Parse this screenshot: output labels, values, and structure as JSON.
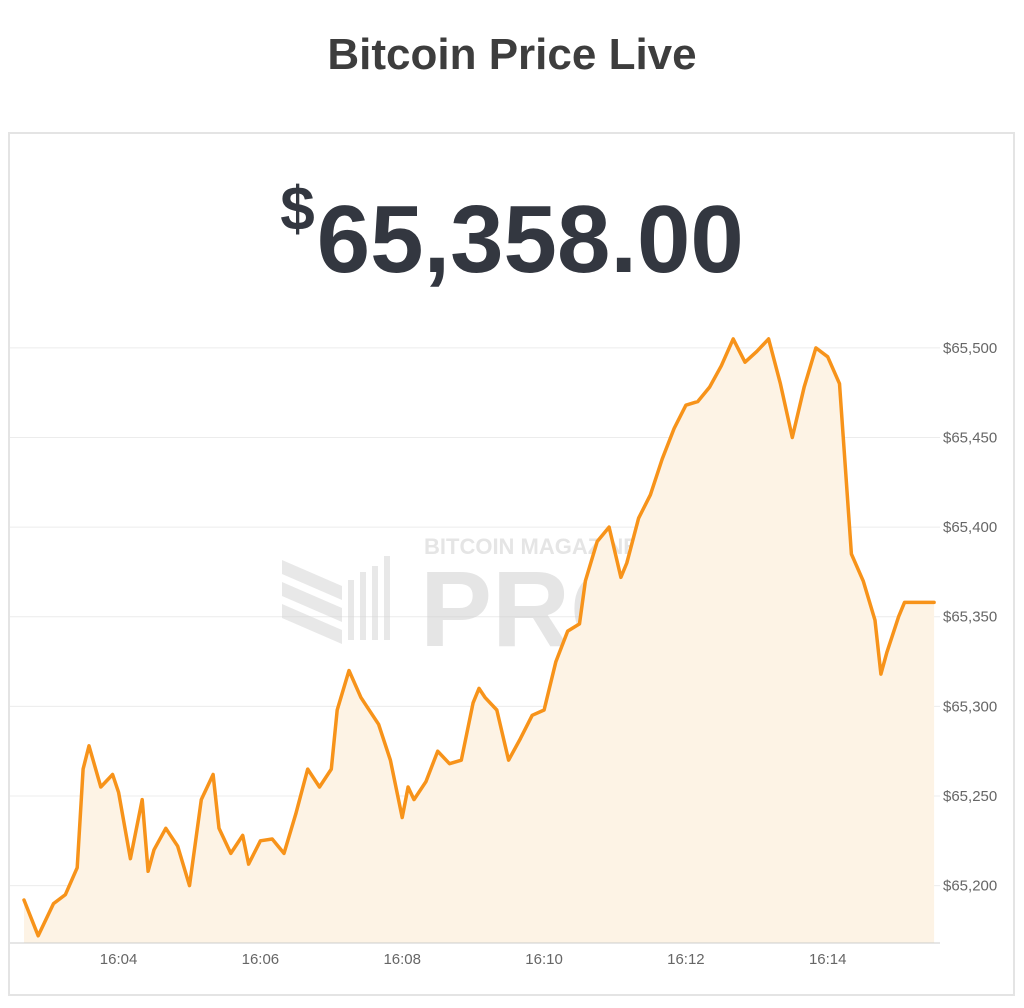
{
  "header": {
    "title": "Bitcoin Price Live"
  },
  "ticker": {
    "currency_symbol": "$",
    "price": "65,358.00"
  },
  "watermark": {
    "brand": "BITCOIN MAGAZINE",
    "product": "PRO"
  },
  "colors": {
    "line": "#f7931a",
    "fill": "#fdf3e5",
    "grid": "#ececec",
    "axis_text": "#666666"
  },
  "chart_data": {
    "type": "area",
    "title": "",
    "xlabel": "",
    "ylabel": "",
    "x_ticks": [
      "16:04",
      "16:06",
      "16:08",
      "16:10",
      "16:12",
      "16:14"
    ],
    "y_ticks": [
      "$65,200",
      "$65,250",
      "$65,300",
      "$65,350",
      "$65,400",
      "$65,450",
      "$65,500"
    ],
    "ylim": [
      65168,
      65520
    ],
    "grid": true,
    "legend": "none",
    "series": [
      {
        "x": [
          "16:02:40",
          "16:02:52",
          "16:03:05",
          "16:03:15",
          "16:03:25",
          "16:03:30",
          "16:03:35",
          "16:03:45",
          "16:03:55",
          "16:04:00",
          "16:04:10",
          "16:04:20",
          "16:04:25",
          "16:04:30",
          "16:04:40",
          "16:04:50",
          "16:05:00",
          "16:05:10",
          "16:05:20",
          "16:05:25",
          "16:05:35",
          "16:05:45",
          "16:05:50",
          "16:06:00",
          "16:06:10",
          "16:06:20",
          "16:06:30",
          "16:06:40",
          "16:06:50",
          "16:07:00",
          "16:07:05",
          "16:07:15",
          "16:07:25",
          "16:07:30",
          "16:07:40",
          "16:07:50",
          "16:08:00",
          "16:08:05",
          "16:08:10",
          "16:08:20",
          "16:08:30",
          "16:08:40",
          "16:08:50",
          "16:09:00",
          "16:09:05",
          "16:09:10",
          "16:09:20",
          "16:09:30",
          "16:09:40",
          "16:09:50",
          "16:10:00",
          "16:10:10",
          "16:10:20",
          "16:10:30",
          "16:10:35",
          "16:10:45",
          "16:10:55",
          "16:11:05",
          "16:11:10",
          "16:11:20",
          "16:11:30",
          "16:11:40",
          "16:11:50",
          "16:12:00",
          "16:12:10",
          "16:12:20",
          "16:12:30",
          "16:12:40",
          "16:12:50",
          "16:13:00",
          "16:13:10",
          "16:13:20",
          "16:13:30",
          "16:13:40",
          "16:13:50",
          "16:14:00",
          "16:14:10",
          "16:14:20",
          "16:14:30",
          "16:14:40",
          "16:14:45",
          "16:14:50",
          "16:14:55",
          "16:15:00",
          "16:15:05",
          "16:15:10",
          "16:15:15",
          "16:15:20",
          "16:15:30"
        ],
        "values": [
          65192,
          65172,
          65190,
          65195,
          65210,
          65265,
          65278,
          65255,
          65262,
          65252,
          65215,
          65248,
          65208,
          65220,
          65232,
          65222,
          65200,
          65248,
          65262,
          65232,
          65218,
          65228,
          65212,
          65225,
          65226,
          65218,
          65240,
          65265,
          65255,
          65265,
          65298,
          65320,
          65305,
          65300,
          65290,
          65270,
          65238,
          65255,
          65248,
          65258,
          65275,
          65268,
          65270,
          65302,
          65310,
          65305,
          65298,
          65270,
          65282,
          65295,
          65298,
          65325,
          65342,
          65346,
          65370,
          65392,
          65400,
          65372,
          65380,
          65405,
          65418,
          65438,
          65455,
          65468,
          65470,
          65478,
          65490,
          65505,
          65492,
          65498,
          65505,
          65480,
          65450,
          65478,
          65500,
          65495,
          65480,
          65385,
          65370,
          65348,
          65318,
          65330,
          65340,
          65350,
          65358,
          65358,
          65358,
          65358,
          65358
        ]
      }
    ]
  }
}
